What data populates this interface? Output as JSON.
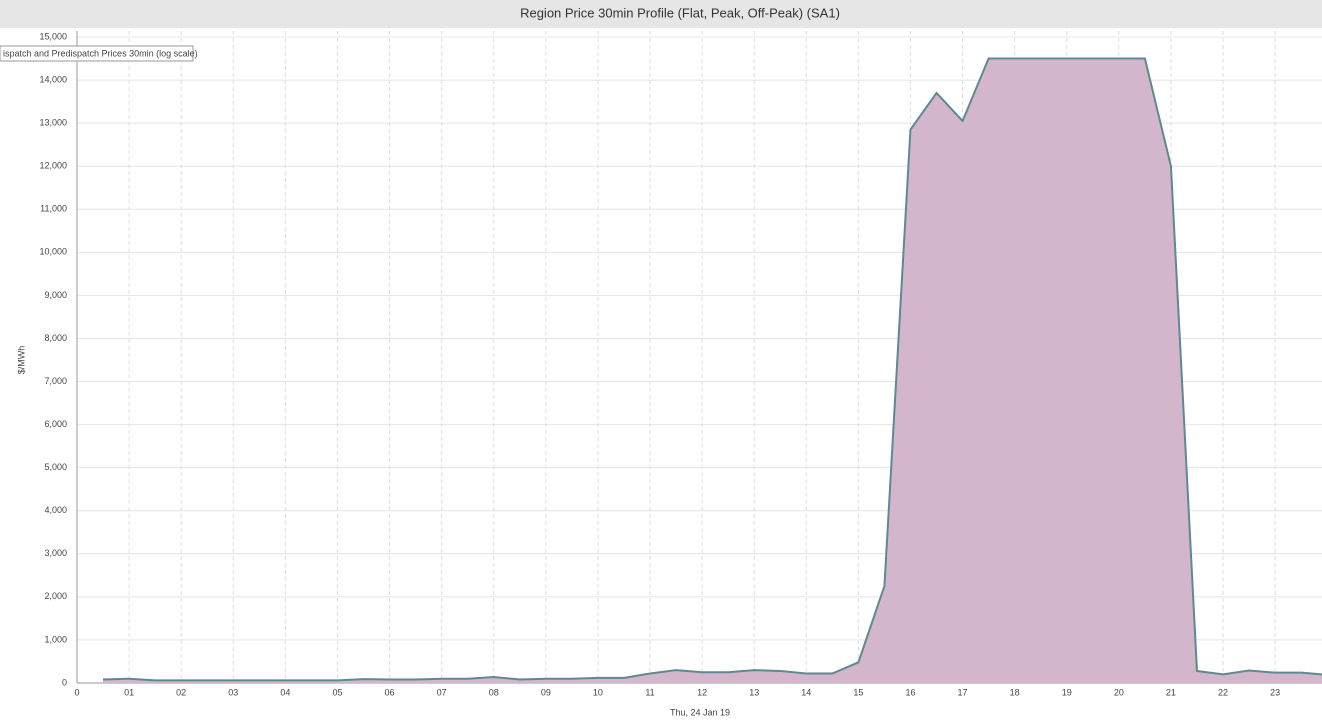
{
  "chart_data": {
    "type": "area",
    "title": "Region Price 30min Profile (Flat, Peak, Off-Peak) (SA1)",
    "annotation": "ispatch and Predispatch Prices 30min (log scale)",
    "x_label": "Thu, 24 Jan 19",
    "y_label": "$/MWh",
    "x": [
      0.5,
      1,
      1.5,
      2,
      2.5,
      3,
      3.5,
      4,
      4.5,
      5,
      5.5,
      6,
      6.5,
      7,
      7.5,
      8,
      8.5,
      9,
      9.5,
      10,
      10.5,
      11,
      11.5,
      12,
      12.5,
      13,
      13.5,
      14,
      14.5,
      15,
      15.5,
      16,
      16.5,
      17,
      17.5,
      18,
      18.5,
      19,
      19.5,
      20,
      20.5,
      21,
      21.5,
      22,
      22.5,
      23,
      23.5,
      23.9
    ],
    "series": [
      {
        "name": "SA1",
        "color": "#5e8a8f",
        "fill": "#d4b6cc",
        "values": [
          80,
          100,
          60,
          60,
          60,
          60,
          60,
          60,
          60,
          60,
          90,
          80,
          80,
          100,
          100,
          140,
          80,
          100,
          100,
          120,
          120,
          220,
          300,
          250,
          250,
          300,
          280,
          220,
          220,
          480,
          2250,
          12850,
          13700,
          13050,
          14500,
          14500,
          14500,
          14500,
          14500,
          14500,
          14500,
          12000,
          280,
          200,
          290,
          240,
          240,
          200
        ]
      }
    ],
    "xlim": [
      0,
      23.9
    ],
    "xticks": [
      0,
      {
        "value": 1,
        "label": "01"
      },
      {
        "value": 2,
        "label": "02"
      },
      {
        "value": 3,
        "label": "03"
      },
      {
        "value": 4,
        "label": "04"
      },
      {
        "value": 5,
        "label": "05"
      },
      {
        "value": 6,
        "label": "06"
      },
      {
        "value": 7,
        "label": "07"
      },
      {
        "value": 8,
        "label": "08"
      },
      {
        "value": 9,
        "label": "09"
      },
      10,
      11,
      12,
      13,
      14,
      15,
      16,
      17,
      18,
      19,
      20,
      21,
      22,
      23
    ],
    "ylim": [
      0,
      15000
    ],
    "yticks": [
      0,
      {
        "value": 1000,
        "label": "1,000"
      },
      {
        "value": 2000,
        "label": "2,000"
      },
      {
        "value": 3000,
        "label": "3,000"
      },
      {
        "value": 4000,
        "label": "4,000"
      },
      {
        "value": 5000,
        "label": "5,000"
      },
      {
        "value": 6000,
        "label": "6,000"
      },
      {
        "value": 7000,
        "label": "7,000"
      },
      {
        "value": 8000,
        "label": "8,000"
      },
      {
        "value": 9000,
        "label": "9,000"
      },
      {
        "value": 10000,
        "label": "10,000"
      },
      {
        "value": 11000,
        "label": "11,000"
      },
      {
        "value": 12000,
        "label": "12,000"
      },
      {
        "value": 13000,
        "label": "13,000"
      },
      {
        "value": 14000,
        "label": "14,000"
      },
      {
        "value": 15000,
        "label": "15,000"
      }
    ],
    "grid": true
  }
}
